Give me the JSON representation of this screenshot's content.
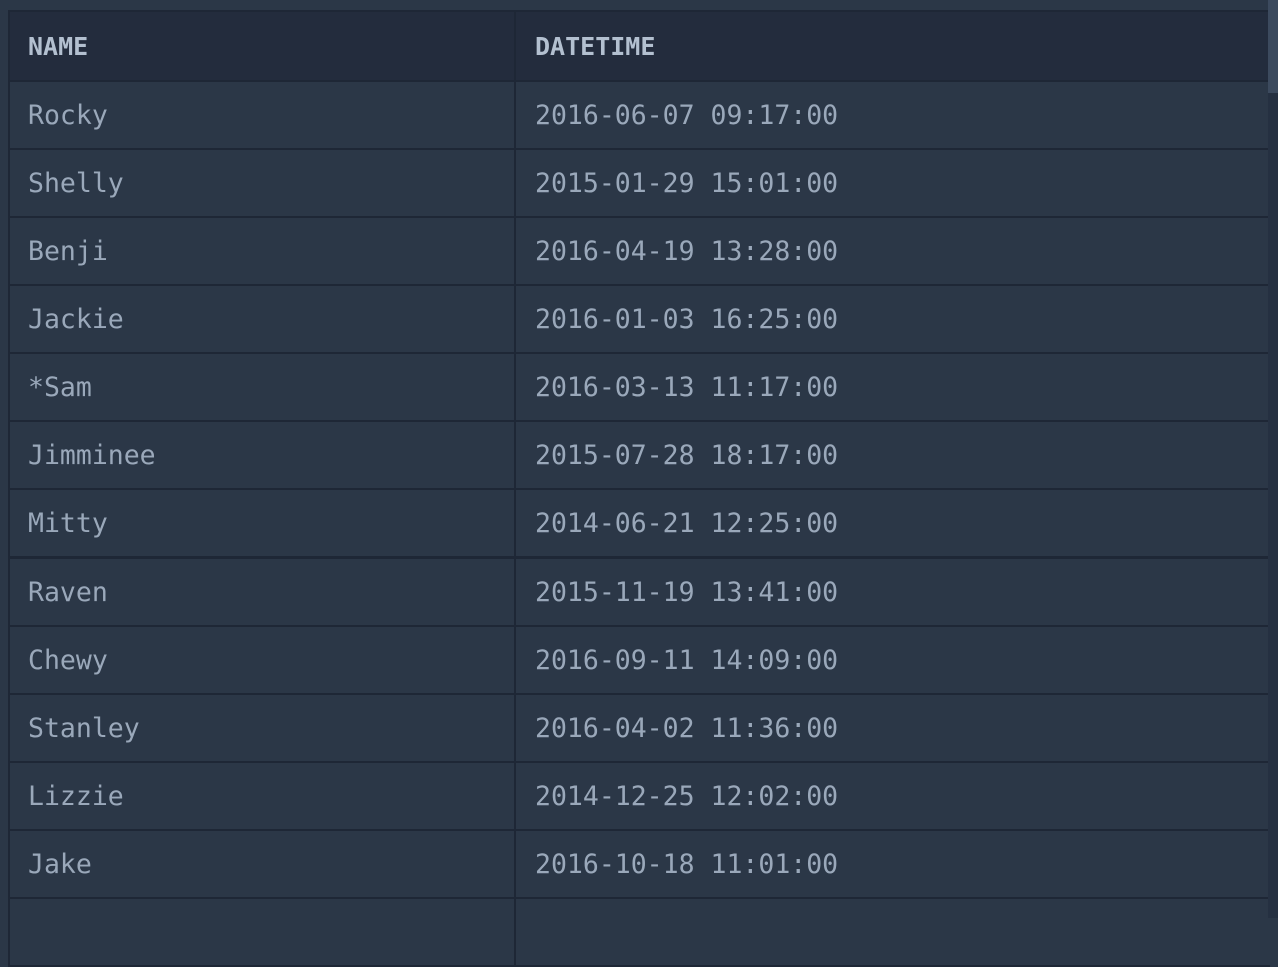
{
  "table": {
    "columns": [
      "NAME",
      "DATETIME"
    ],
    "rows": [
      {
        "name": "Rocky",
        "datetime": "2016-06-07 09:17:00"
      },
      {
        "name": "Shelly",
        "datetime": "2015-01-29 15:01:00"
      },
      {
        "name": "Benji",
        "datetime": "2016-04-19 13:28:00"
      },
      {
        "name": "Jackie",
        "datetime": "2016-01-03 16:25:00"
      },
      {
        "name": "*Sam",
        "datetime": "2016-03-13 11:17:00"
      },
      {
        "name": "Jimminee",
        "datetime": "2015-07-28 18:17:00"
      },
      {
        "name": "Mitty",
        "datetime": "2014-06-21 12:25:00"
      },
      {
        "name": "Raven",
        "datetime": "2015-11-19 13:41:00"
      },
      {
        "name": "Chewy",
        "datetime": "2016-09-11 14:09:00"
      },
      {
        "name": "Stanley",
        "datetime": "2016-04-02 11:36:00"
      },
      {
        "name": "Lizzie",
        "datetime": "2014-12-25 12:02:00"
      },
      {
        "name": "Jake",
        "datetime": "2016-10-18 11:01:00"
      },
      {
        "name": "",
        "datetime": ""
      }
    ]
  }
}
